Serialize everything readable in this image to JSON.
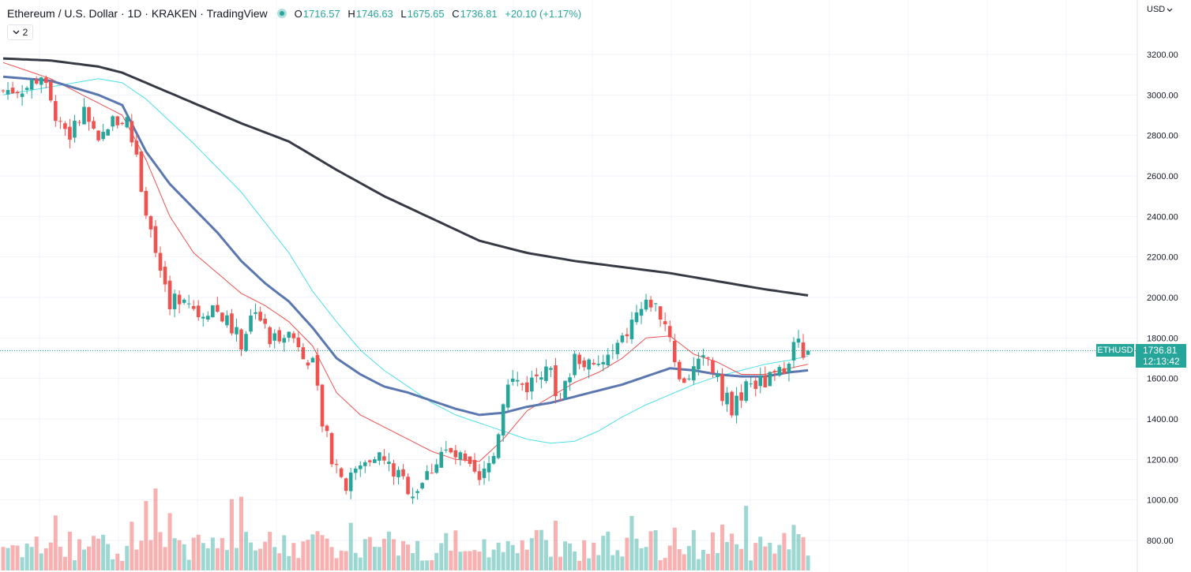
{
  "header": {
    "title": "Ethereum / U.S. Dollar · 1D · KRAKEN · TradingView",
    "ohlc": {
      "open_key": "O",
      "open": "1716.57",
      "high_key": "H",
      "high": "1746.63",
      "low_key": "L",
      "low": "1675.65",
      "close_key": "C",
      "close": "1736.81",
      "change": "+20.10 (+1.17%)"
    },
    "indicators_collapsed_count": "2"
  },
  "currency": "USD",
  "price_tag": {
    "symbol": "ETHUSD",
    "price": "1736.81",
    "countdown": "12:13:42"
  },
  "colors": {
    "up": "#26a69a",
    "down": "#ef5350",
    "ema_fast": "#f05250",
    "sma_cyan": "#4de0e8",
    "ma_blue": "#5b77b0",
    "ma_long": "#363a45"
  },
  "icons": {
    "status_dot": "dot-icon",
    "collapse": "chevron-down-icon",
    "currency": "chevron-down-icon"
  },
  "chart_data": {
    "type": "candlestick",
    "symbol": "ETHUSD",
    "exchange": "KRAKEN",
    "interval": "1D",
    "y_axis": {
      "ticks": [
        800,
        1000,
        1200,
        1400,
        1600,
        1800,
        2000,
        2200,
        2400,
        2600,
        2800,
        3000,
        3200
      ],
      "tick_labels": [
        "800.00",
        "1000.00",
        "1200.00",
        "1400.00",
        "1600.00",
        "1800.00",
        "2000.00",
        "2200.00",
        "2400.00",
        "2600.00",
        "2800.00",
        "3000.00",
        "3200.00"
      ],
      "range": [
        700,
        3420
      ],
      "side": "right"
    },
    "grid": true,
    "last_price": 1736.81,
    "close_anchors": [
      [
        0,
        3020
      ],
      [
        5,
        3040
      ],
      [
        8,
        3100
      ],
      [
        10,
        2950
      ],
      [
        14,
        2800
      ],
      [
        17,
        2920
      ],
      [
        20,
        2740
      ],
      [
        22,
        2860
      ],
      [
        26,
        2880
      ],
      [
        29,
        2560
      ],
      [
        32,
        2220
      ],
      [
        35,
        1980
      ],
      [
        38,
        2020
      ],
      [
        41,
        1920
      ],
      [
        44,
        1960
      ],
      [
        47,
        1880
      ],
      [
        50,
        1780
      ],
      [
        53,
        1960
      ],
      [
        56,
        1780
      ],
      [
        59,
        1840
      ],
      [
        62,
        1780
      ],
      [
        65,
        1660
      ],
      [
        67,
        1380
      ],
      [
        69,
        1220
      ],
      [
        72,
        1080
      ],
      [
        75,
        1160
      ],
      [
        78,
        1240
      ],
      [
        82,
        1140
      ],
      [
        86,
        1040
      ],
      [
        89,
        1120
      ],
      [
        92,
        1240
      ],
      [
        96,
        1200
      ],
      [
        100,
        1080
      ],
      [
        103,
        1220
      ],
      [
        106,
        1600
      ],
      [
        110,
        1560
      ],
      [
        114,
        1680
      ],
      [
        117,
        1480
      ],
      [
        120,
        1720
      ],
      [
        124,
        1640
      ],
      [
        127,
        1700
      ],
      [
        130,
        1780
      ],
      [
        133,
        1920
      ],
      [
        136,
        1980
      ],
      [
        138,
        1920
      ],
      [
        140,
        1820
      ],
      [
        142,
        1580
      ],
      [
        145,
        1640
      ],
      [
        148,
        1700
      ],
      [
        151,
        1520
      ],
      [
        153,
        1460
      ],
      [
        156,
        1560
      ],
      [
        160,
        1580
      ],
      [
        163,
        1620
      ],
      [
        166,
        1760
      ],
      [
        169,
        1736.81
      ]
    ],
    "volume_note": "volume bars at bottom, colored by candle direction",
    "moving_averages": [
      {
        "color": "#f05250",
        "kind": "fast"
      },
      {
        "color": "#4de0e8",
        "kind": "medium"
      },
      {
        "color": "#5b77b0",
        "kind": "medium-thick"
      },
      {
        "color": "#363a45",
        "kind": "long"
      }
    ],
    "ma_long_anchors": [
      [
        0,
        3180
      ],
      [
        10,
        3170
      ],
      [
        20,
        3140
      ],
      [
        25,
        3110
      ],
      [
        30,
        3060
      ],
      [
        40,
        2960
      ],
      [
        50,
        2860
      ],
      [
        60,
        2770
      ],
      [
        70,
        2630
      ],
      [
        80,
        2500
      ],
      [
        90,
        2390
      ],
      [
        100,
        2280
      ],
      [
        110,
        2220
      ],
      [
        120,
        2180
      ],
      [
        130,
        2150
      ],
      [
        140,
        2120
      ],
      [
        150,
        2080
      ],
      [
        160,
        2040
      ],
      [
        169,
        2010
      ]
    ],
    "ma_blue_anchors": [
      [
        0,
        3090
      ],
      [
        10,
        3070
      ],
      [
        20,
        3000
      ],
      [
        25,
        2950
      ],
      [
        30,
        2720
      ],
      [
        35,
        2560
      ],
      [
        40,
        2440
      ],
      [
        45,
        2320
      ],
      [
        50,
        2180
      ],
      [
        55,
        2070
      ],
      [
        60,
        1980
      ],
      [
        65,
        1850
      ],
      [
        70,
        1700
      ],
      [
        75,
        1620
      ],
      [
        80,
        1560
      ],
      [
        85,
        1530
      ],
      [
        90,
        1490
      ],
      [
        95,
        1450
      ],
      [
        100,
        1420
      ],
      [
        105,
        1430
      ],
      [
        110,
        1460
      ],
      [
        115,
        1480
      ],
      [
        120,
        1510
      ],
      [
        125,
        1540
      ],
      [
        130,
        1570
      ],
      [
        135,
        1610
      ],
      [
        140,
        1650
      ],
      [
        145,
        1640
      ],
      [
        150,
        1620
      ],
      [
        155,
        1610
      ],
      [
        160,
        1610
      ],
      [
        165,
        1630
      ],
      [
        169,
        1640
      ]
    ],
    "ma_cyan_anchors": [
      [
        0,
        3000
      ],
      [
        10,
        3040
      ],
      [
        20,
        3080
      ],
      [
        25,
        3060
      ],
      [
        30,
        2980
      ],
      [
        40,
        2760
      ],
      [
        50,
        2520
      ],
      [
        60,
        2220
      ],
      [
        65,
        2030
      ],
      [
        70,
        1880
      ],
      [
        75,
        1740
      ],
      [
        80,
        1640
      ],
      [
        85,
        1560
      ],
      [
        90,
        1480
      ],
      [
        95,
        1420
      ],
      [
        100,
        1380
      ],
      [
        105,
        1340
      ],
      [
        110,
        1300
      ],
      [
        115,
        1280
      ],
      [
        120,
        1290
      ],
      [
        125,
        1340
      ],
      [
        130,
        1410
      ],
      [
        135,
        1470
      ],
      [
        140,
        1520
      ],
      [
        145,
        1570
      ],
      [
        150,
        1610
      ],
      [
        155,
        1640
      ],
      [
        160,
        1670
      ],
      [
        165,
        1690
      ],
      [
        169,
        1710
      ]
    ],
    "ma_red_anchors": [
      [
        0,
        3160
      ],
      [
        5,
        3120
      ],
      [
        10,
        3080
      ],
      [
        15,
        3020
      ],
      [
        20,
        2960
      ],
      [
        25,
        2900
      ],
      [
        30,
        2680
      ],
      [
        35,
        2400
      ],
      [
        40,
        2220
      ],
      [
        45,
        2120
      ],
      [
        50,
        2020
      ],
      [
        55,
        1960
      ],
      [
        60,
        1880
      ],
      [
        65,
        1760
      ],
      [
        70,
        1530
      ],
      [
        75,
        1420
      ],
      [
        80,
        1360
      ],
      [
        85,
        1300
      ],
      [
        90,
        1240
      ],
      [
        95,
        1200
      ],
      [
        100,
        1190
      ],
      [
        105,
        1300
      ],
      [
        110,
        1440
      ],
      [
        115,
        1510
      ],
      [
        120,
        1580
      ],
      [
        125,
        1630
      ],
      [
        130,
        1700
      ],
      [
        135,
        1800
      ],
      [
        140,
        1810
      ],
      [
        145,
        1720
      ],
      [
        150,
        1680
      ],
      [
        155,
        1620
      ],
      [
        160,
        1620
      ],
      [
        165,
        1650
      ],
      [
        169,
        1670
      ]
    ]
  }
}
